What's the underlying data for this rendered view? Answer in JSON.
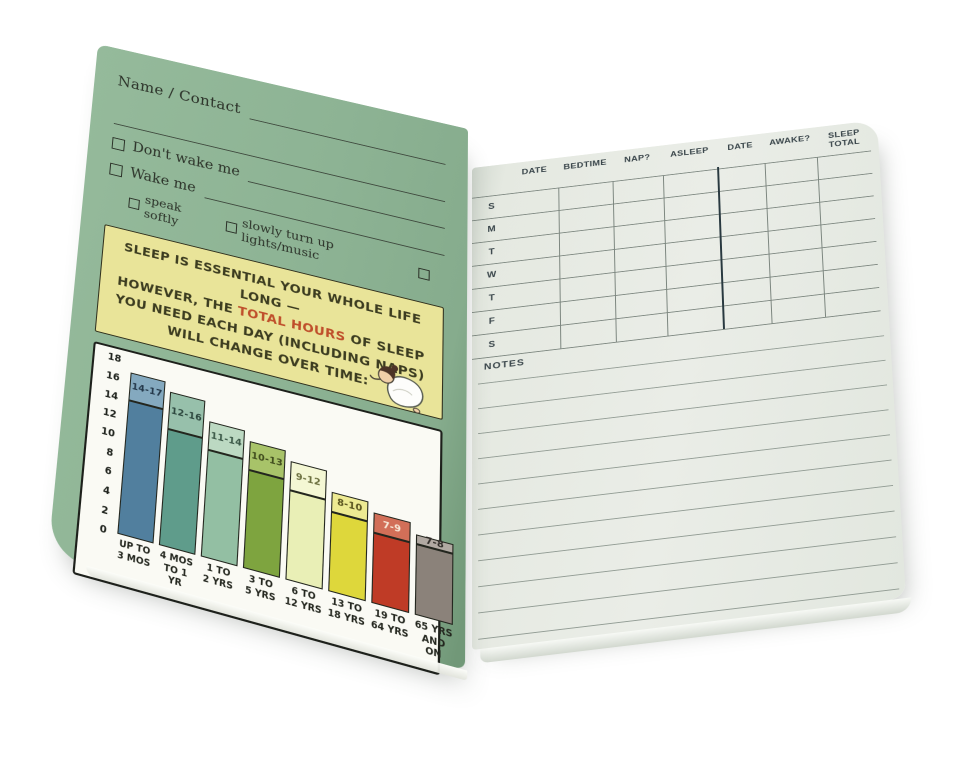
{
  "left_page": {
    "name_contact_label": "Name / Contact",
    "wake_options": [
      "Don't wake me",
      "Wake me"
    ],
    "sub_options": [
      "speak softly",
      "slowly turn up lights/music"
    ],
    "banner": {
      "line1": "SLEEP IS ESSENTIAL YOUR WHOLE LIFE LONG —",
      "line2_pre": "HOWEVER, THE ",
      "line2_highlight": "TOTAL HOURS",
      "line2_post": " OF SLEEP",
      "line3": "YOU NEED EACH DAY (INCLUDING NAPS)",
      "line4": "WILL CHANGE OVER TIME:"
    }
  },
  "chart_data": {
    "type": "bar",
    "title": "SLEEP IS ESSENTIAL YOUR WHOLE LIFE LONG — HOWEVER, THE TOTAL HOURS OF SLEEP YOU NEED EACH DAY (INCLUDING NAPS) WILL CHANGE OVER TIME:",
    "xlabel": "",
    "ylabel": "",
    "ylim": [
      0,
      18
    ],
    "yticks": [
      18,
      16,
      14,
      12,
      10,
      8,
      6,
      4,
      2,
      0
    ],
    "grid": false,
    "legend": false,
    "categories": [
      "UP TO 3 MOS",
      "4 MOS TO 1 YR",
      "1 TO 2 YRS",
      "3 TO 5 YRS",
      "6 TO 12 YRS",
      "13 TO 18 YRS",
      "19 TO 64 YRS",
      "65 YRS AND ON"
    ],
    "category_lines": [
      [
        "UP TO",
        "3 MOS"
      ],
      [
        "4 MOS",
        "TO 1 YR"
      ],
      [
        "1 TO",
        "2 YRS"
      ],
      [
        "3 TO",
        "5 YRS"
      ],
      [
        "6 TO",
        "12 YRS"
      ],
      [
        "13 TO",
        "18 YRS"
      ],
      [
        "19 TO",
        "64 YRS"
      ],
      [
        "65 YRS",
        "AND ON"
      ]
    ],
    "bars": [
      {
        "category": "UP TO 3 MOS",
        "min": 14,
        "max": 17,
        "range_label": "14-17",
        "color": "#517f9e",
        "light_color": "#84a9bf",
        "label_color": "#24384a"
      },
      {
        "category": "4 MOS TO 1 YR",
        "min": 12,
        "max": 16,
        "range_label": "12-16",
        "color": "#5f9c8b",
        "light_color": "#97c0ab",
        "label_color": "#2c473e"
      },
      {
        "category": "1 TO 2 YRS",
        "min": 11,
        "max": 14,
        "range_label": "11-14",
        "color": "#93bfa3",
        "light_color": "#bcd9c2",
        "label_color": "#3b5847"
      },
      {
        "category": "3 TO 5 YRS",
        "min": 10,
        "max": 13,
        "range_label": "10-13",
        "color": "#7ea43f",
        "light_color": "#a8c369",
        "label_color": "#3f4b1d"
      },
      {
        "category": "6 TO 12 YRS",
        "min": 9,
        "max": 12,
        "range_label": "9-12",
        "color": "#e9efb6",
        "light_color": "#f4f7d4",
        "label_color": "#6b6f3e"
      },
      {
        "category": "13 TO 18 YRS",
        "min": 8,
        "max": 10,
        "range_label": "8-10",
        "color": "#ded73b",
        "light_color": "#edea92",
        "label_color": "#57511d"
      },
      {
        "category": "19 TO 64 YRS",
        "min": 7,
        "max": 9,
        "range_label": "7-9",
        "color": "#bf3b26",
        "light_color": "#d26f58",
        "label_color": "#f7e9d8"
      },
      {
        "category": "65 YRS AND ON",
        "min": 7,
        "max": 8,
        "range_label": "7-8",
        "color": "#8b827a",
        "light_color": "#b1a9a2",
        "label_color": "#2f2b27"
      }
    ]
  },
  "right_page": {
    "columns": [
      "DATE",
      "BEDTIME",
      "NAP?",
      "ASLEEP",
      "DATE",
      "AWAKE?",
      "SLEEP TOTAL"
    ],
    "day_rows": [
      "S",
      "M",
      "T",
      "W",
      "T",
      "F",
      "S"
    ],
    "notes_label": "NOTES"
  },
  "colors": {
    "left_page_green": "#8db394",
    "right_page_paper": "#e9ece6",
    "banner_yellow": "#e9e499",
    "banner_accent_red": "#bf4f2b",
    "chart_paper": "#fafaf4",
    "table_line_gray": "#7c867f",
    "table_heavy_line": "#293940",
    "ink_dark": "#2b3128"
  }
}
